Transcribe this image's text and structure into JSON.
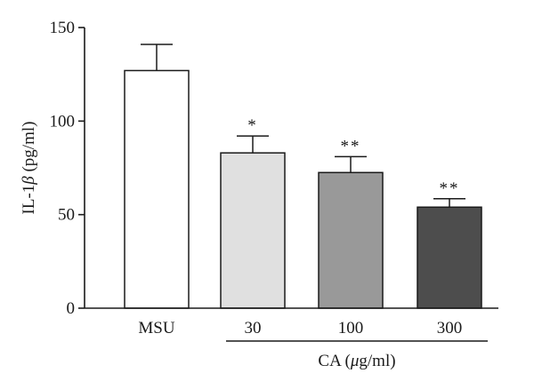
{
  "chart_data": {
    "type": "bar",
    "categories": [
      "MSU",
      "30",
      "100",
      "300"
    ],
    "values": [
      127,
      83,
      72.5,
      54
    ],
    "errors": [
      14,
      9,
      8.5,
      4.5
    ],
    "significance": [
      "",
      "*",
      "**",
      "**"
    ],
    "bar_colors": [
      "#ffffff",
      "#e0e0e0",
      "#999999",
      "#4d4d4d"
    ],
    "ylim": [
      0,
      150
    ],
    "yticks": [
      0,
      50,
      100,
      150
    ],
    "ylabel_prefix": "IL-1",
    "ylabel_symbol": "β",
    "ylabel_suffix": " (pg/ml)",
    "group_label_prefix": "CA (",
    "group_label_symbol": "μ",
    "group_label_suffix": "g/ml)",
    "grid": false
  }
}
